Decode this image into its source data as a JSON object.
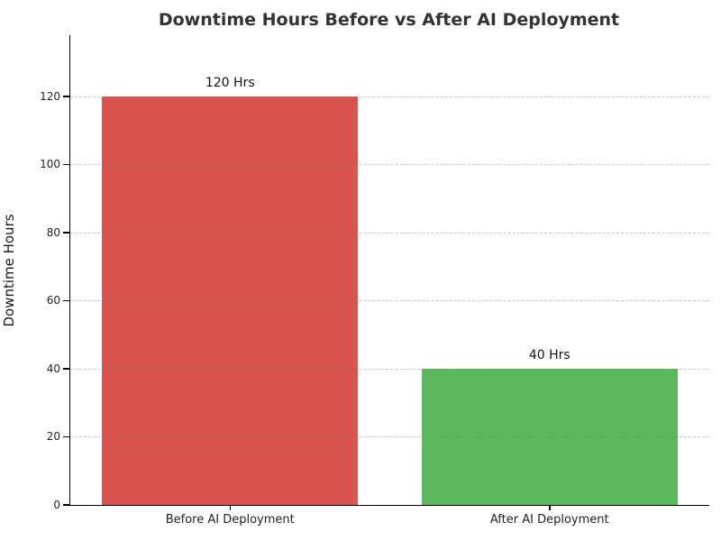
{
  "chart_data": {
    "type": "bar",
    "title": "Downtime Hours Before vs After AI Deployment",
    "xlabel": "",
    "ylabel": "Downtime Hours",
    "categories": [
      "Before AI Deployment",
      "After AI Deployment"
    ],
    "values": [
      120,
      40
    ],
    "bar_labels": [
      "120 Hrs",
      "40 Hrs"
    ],
    "bar_colors": [
      "#d9534f",
      "#5cb85c"
    ],
    "yticks": [
      0,
      20,
      40,
      60,
      80,
      100,
      120
    ],
    "ylim": [
      0,
      138
    ],
    "grid": "horizontal-dashed",
    "legend_position": "none"
  },
  "style": {
    "title_color": "#333333",
    "axis_color": "#000000",
    "grid_color": "rgba(130,130,130,0.45)",
    "tick_text_color": "#222222",
    "background": "#ffffff"
  }
}
